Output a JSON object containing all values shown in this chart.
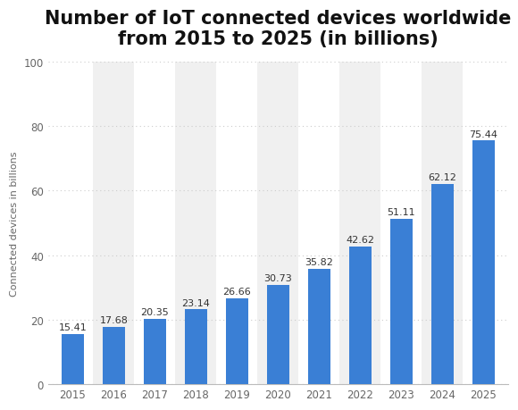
{
  "title": "Number of IoT connected devices worldwide\nfrom 2015 to 2025 (in billions)",
  "ylabel": "Connected devices in billions",
  "years": [
    2015,
    2016,
    2017,
    2018,
    2019,
    2020,
    2021,
    2022,
    2023,
    2024,
    2025
  ],
  "values": [
    15.41,
    17.68,
    20.35,
    23.14,
    26.66,
    30.73,
    35.82,
    42.62,
    51.11,
    62.12,
    75.44
  ],
  "bar_color": "#3a7fd5",
  "background_color": "#ffffff",
  "plot_bg_color": "#ffffff",
  "band_color": "#f0f0f0",
  "ylim": [
    0,
    100
  ],
  "yticks": [
    0,
    20,
    40,
    60,
    80,
    100
  ],
  "title_fontsize": 15,
  "ylabel_fontsize": 8,
  "bar_value_fontsize": 8,
  "tick_fontsize": 8.5,
  "grid_color": "#cccccc",
  "figsize": [
    5.8,
    4.6
  ],
  "dpi": 100
}
